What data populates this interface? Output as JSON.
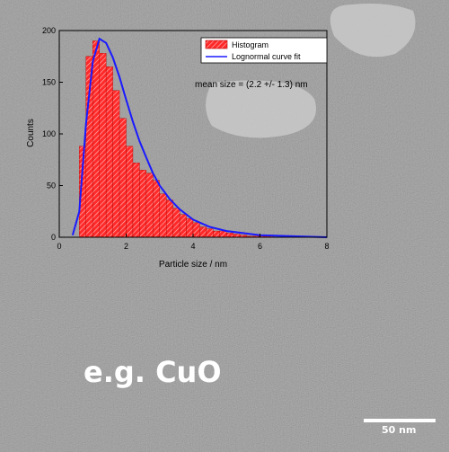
{
  "image": {
    "sample_label": "e.g. CuO",
    "scale_bar_label": "50 nm"
  },
  "colors": {
    "histogram_fill": "#ff2a2a",
    "histogram_hatch": "#ffffff",
    "fit_line": "#1a1aff",
    "axis": "#000000",
    "tem_background": "#9a9a9a"
  },
  "chart_data": {
    "type": "bar",
    "title": "",
    "xlabel": "Particle size / nm",
    "ylabel": "Counts",
    "xlim": [
      0,
      8
    ],
    "ylim": [
      0,
      200
    ],
    "x_ticks": [
      "0",
      "2",
      "4",
      "6",
      "8"
    ],
    "y_ticks": [
      "0",
      "50",
      "100",
      "150",
      "200"
    ],
    "grid": false,
    "legend_position": "top-right",
    "annotation": "mean size = (2.2 +/- 1.3) nm",
    "bin_width": 0.2,
    "series": [
      {
        "name": "Histogram",
        "kind": "histogram",
        "bin_starts": [
          0.6,
          0.8,
          1.0,
          1.2,
          1.4,
          1.6,
          1.8,
          2.0,
          2.2,
          2.4,
          2.6,
          2.8,
          3.0,
          3.2,
          3.4,
          3.6,
          3.8,
          4.0,
          4.2,
          4.4,
          4.6,
          4.8,
          5.0,
          5.2,
          5.4,
          5.6,
          5.8,
          6.0,
          6.2
        ],
        "values": [
          88,
          175,
          190,
          178,
          165,
          142,
          115,
          88,
          72,
          65,
          62,
          55,
          42,
          36,
          28,
          22,
          18,
          14,
          10,
          8,
          6,
          6,
          4,
          3,
          2,
          1,
          1,
          1,
          1
        ]
      },
      {
        "name": "Lognormal curve fit",
        "kind": "line",
        "x": [
          0.4,
          0.6,
          0.8,
          1.0,
          1.2,
          1.4,
          1.6,
          1.8,
          2.0,
          2.2,
          2.4,
          2.6,
          2.8,
          3.0,
          3.3,
          3.6,
          4.0,
          4.5,
          5.0,
          5.5,
          6.0,
          7.0,
          8.0
        ],
        "values": [
          2,
          25,
          110,
          170,
          192,
          188,
          174,
          155,
          133,
          112,
          93,
          77,
          62,
          50,
          37,
          27,
          17,
          10,
          6,
          4,
          2,
          1,
          0
        ]
      }
    ]
  }
}
